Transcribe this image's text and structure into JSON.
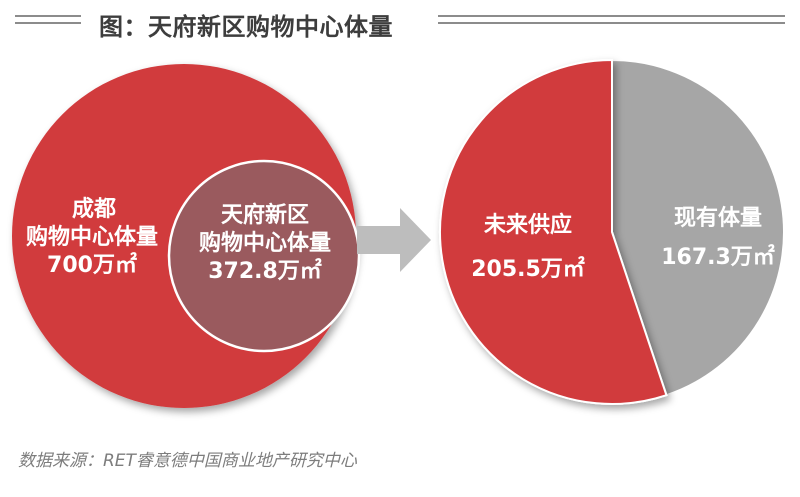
{
  "header": {
    "title": "图：天府新区购物中心体量"
  },
  "chart_data": [
    {
      "type": "venn",
      "total": {
        "line1": "成都",
        "line2": "购物中心体量",
        "value_text": "700万㎡",
        "value": 700,
        "unit": "万㎡"
      },
      "subset": {
        "line1": "天府新区",
        "line2": "购物中心体量",
        "value_text": "372.8万㎡",
        "value": 372.8,
        "unit": "万㎡"
      }
    },
    {
      "type": "pie",
      "unit": "万㎡",
      "slices": [
        {
          "label": "未来供应",
          "value": 205.5,
          "value_text": "205.5万㎡",
          "color": "#d13a3e"
        },
        {
          "label": "现有体量",
          "value": 167.3,
          "value_text": "167.3万㎡",
          "color": "#a6a6a6"
        }
      ]
    }
  ],
  "colors": {
    "red": "#d13a3e",
    "inner": "#9a5a5e",
    "gray": "#a6a6a6",
    "arrow": "#bdbdbd"
  },
  "footer": {
    "source": "数据来源：RET睿意德中国商业地产研究中心"
  }
}
